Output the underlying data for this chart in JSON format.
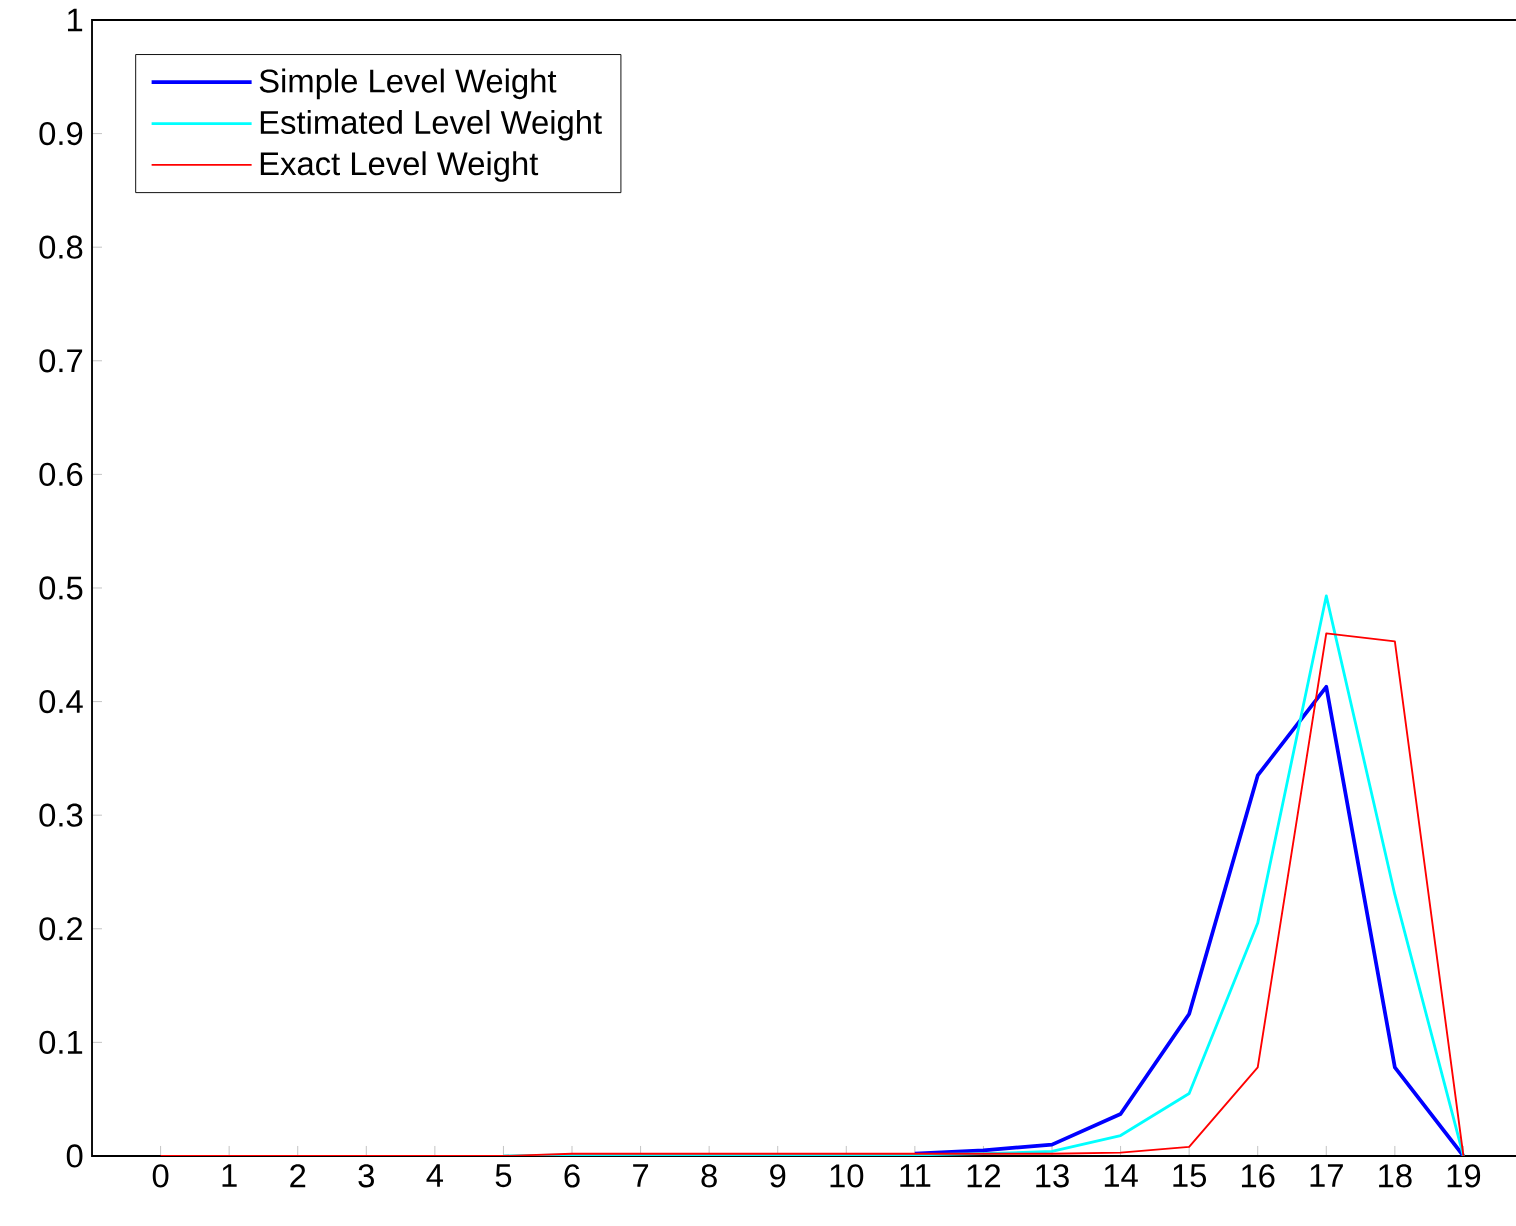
{
  "chart_data": {
    "type": "line",
    "x": [
      0,
      1,
      2,
      3,
      4,
      5,
      6,
      7,
      8,
      9,
      10,
      11,
      12,
      13,
      14,
      15,
      16,
      17,
      18,
      19
    ],
    "xlim": [
      -1,
      20
    ],
    "ylim": [
      0,
      1
    ],
    "xticks": [
      0,
      1,
      2,
      3,
      4,
      5,
      6,
      7,
      8,
      9,
      10,
      11,
      12,
      13,
      14,
      15,
      16,
      17,
      18,
      19
    ],
    "yticks": [
      0,
      0.1,
      0.2,
      0.3,
      0.4,
      0.5,
      0.6,
      0.7,
      0.8,
      0.9,
      1
    ],
    "legend": "top left",
    "grid": false,
    "series": [
      {
        "name": "Simple Level Weight",
        "color": "#0000ff",
        "values": [
          null,
          null,
          null,
          null,
          null,
          null,
          null,
          null,
          null,
          null,
          null,
          0.002,
          0.005,
          0.01,
          0.037,
          0.125,
          0.335,
          0.413,
          0.078,
          0
        ]
      },
      {
        "name": "Estimated Level Weight",
        "color": "#00ffff",
        "values": [
          null,
          null,
          null,
          null,
          null,
          0,
          0.001,
          0.001,
          0.001,
          0.001,
          0.001,
          0.001,
          0.002,
          0.004,
          0.018,
          0.055,
          0.205,
          0.493,
          0.23,
          0
        ]
      },
      {
        "name": "Exact Level Weight",
        "color": "#ff0000",
        "values": [
          0,
          0,
          0,
          0,
          0,
          0,
          0.002,
          0.002,
          0.002,
          0.002,
          0.002,
          0.002,
          0.002,
          0.002,
          0.003,
          0.008,
          0.078,
          0.46,
          0.453,
          0
        ]
      }
    ]
  }
}
